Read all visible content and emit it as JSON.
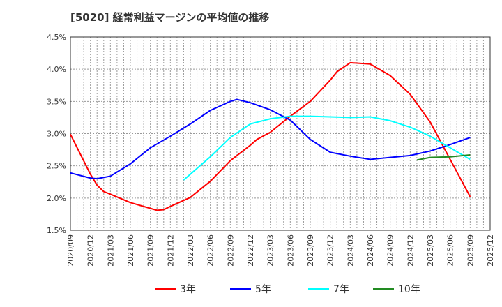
{
  "chart_data": {
    "type": "line",
    "title": "[5020]  経常利益マージンの平均値の推移",
    "xlabel": "",
    "ylabel": "",
    "ylim": [
      1.5,
      4.5
    ],
    "yticks": [
      "1.5%",
      "2.0%",
      "2.5%",
      "3.0%",
      "3.5%",
      "4.0%",
      "4.5%"
    ],
    "xticks": [
      "2020/09",
      "2020/12",
      "2021/03",
      "2021/06",
      "2021/09",
      "2021/12",
      "2022/03",
      "2022/06",
      "2022/09",
      "2022/12",
      "2023/03",
      "2023/06",
      "2023/09",
      "2023/12",
      "2024/03",
      "2024/06",
      "2024/09",
      "2024/12",
      "2025/03",
      "2025/06",
      "2025/09",
      "2025/12"
    ],
    "grid": true,
    "legend_position": "bottom",
    "series": [
      {
        "name": "3年",
        "color": "#ff0000",
        "points": [
          [
            "2020/09",
            2.99
          ],
          [
            "2020/12",
            2.37
          ],
          [
            "2021/01",
            2.2
          ],
          [
            "2021/02",
            2.1
          ],
          [
            "2021/03",
            2.06
          ],
          [
            "2021/06",
            1.93
          ],
          [
            "2021/09",
            1.84
          ],
          [
            "2021/10",
            1.81
          ],
          [
            "2021/11",
            1.82
          ],
          [
            "2021/12",
            1.87
          ],
          [
            "2022/03",
            2.01
          ],
          [
            "2022/06",
            2.26
          ],
          [
            "2022/09",
            2.58
          ],
          [
            "2022/12",
            2.82
          ],
          [
            "2023/01",
            2.91
          ],
          [
            "2023/03",
            3.02
          ],
          [
            "2023/06",
            3.27
          ],
          [
            "2023/09",
            3.5
          ],
          [
            "2023/12",
            3.83
          ],
          [
            "2024/01",
            3.96
          ],
          [
            "2024/03",
            4.1
          ],
          [
            "2024/06",
            4.08
          ],
          [
            "2024/09",
            3.9
          ],
          [
            "2024/12",
            3.61
          ],
          [
            "2025/03",
            3.18
          ],
          [
            "2025/06",
            2.6
          ],
          [
            "2025/09",
            2.02
          ]
        ]
      },
      {
        "name": "5年",
        "color": "#0000ff",
        "points": [
          [
            "2020/09",
            2.39
          ],
          [
            "2020/12",
            2.31
          ],
          [
            "2021/01",
            2.3
          ],
          [
            "2021/03",
            2.34
          ],
          [
            "2021/06",
            2.53
          ],
          [
            "2021/09",
            2.78
          ],
          [
            "2021/12",
            2.96
          ],
          [
            "2022/03",
            3.15
          ],
          [
            "2022/06",
            3.36
          ],
          [
            "2022/09",
            3.5
          ],
          [
            "2022/10",
            3.53
          ],
          [
            "2022/12",
            3.48
          ],
          [
            "2023/03",
            3.37
          ],
          [
            "2023/06",
            3.21
          ],
          [
            "2023/09",
            2.91
          ],
          [
            "2023/12",
            2.71
          ],
          [
            "2024/03",
            2.65
          ],
          [
            "2024/06",
            2.6
          ],
          [
            "2024/09",
            2.63
          ],
          [
            "2024/12",
            2.66
          ],
          [
            "2025/03",
            2.73
          ],
          [
            "2025/06",
            2.83
          ],
          [
            "2025/09",
            2.94
          ]
        ]
      },
      {
        "name": "7年",
        "color": "#00ffff",
        "points": [
          [
            "2022/02",
            2.28
          ],
          [
            "2022/06",
            2.64
          ],
          [
            "2022/09",
            2.94
          ],
          [
            "2022/12",
            3.15
          ],
          [
            "2023/03",
            3.23
          ],
          [
            "2023/06",
            3.27
          ],
          [
            "2023/09",
            3.27
          ],
          [
            "2023/12",
            3.26
          ],
          [
            "2024/03",
            3.25
          ],
          [
            "2024/06",
            3.26
          ],
          [
            "2024/09",
            3.2
          ],
          [
            "2024/12",
            3.1
          ],
          [
            "2025/03",
            2.96
          ],
          [
            "2025/06",
            2.78
          ],
          [
            "2025/09",
            2.6
          ]
        ]
      },
      {
        "name": "10年",
        "color": "#228b22",
        "points": [
          [
            "2025/01",
            2.59
          ],
          [
            "2025/03",
            2.63
          ],
          [
            "2025/06",
            2.64
          ],
          [
            "2025/09",
            2.67
          ]
        ]
      }
    ]
  }
}
